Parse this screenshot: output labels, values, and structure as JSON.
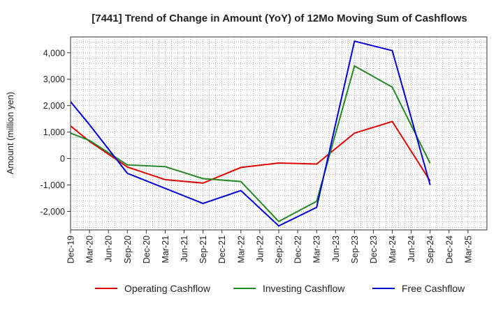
{
  "chart_data": {
    "type": "line",
    "title": "[7441]  Trend of Change in Amount (YoY) of 12Mo Moving Sum of Cashflows",
    "xlabel": "",
    "ylabel": "Amount (million yen)",
    "ylim": [
      -2700,
      4600
    ],
    "yticks": [
      -2000,
      -1000,
      0,
      1000,
      2000,
      3000,
      4000
    ],
    "ytick_labels": [
      "-2,000",
      "-1,000",
      "0",
      "1,000",
      "2,000",
      "3,000",
      "4,000"
    ],
    "grid": true,
    "legend_position": "bottom",
    "categories": [
      "Dec-19",
      "Mar-20",
      "Jun-20",
      "Sep-20",
      "Dec-20",
      "Mar-21",
      "Jun-21",
      "Sep-21",
      "Dec-21",
      "Mar-22",
      "Jun-22",
      "Sep-22",
      "Dec-22",
      "Mar-23",
      "Jun-23",
      "Sep-23",
      "Dec-23",
      "Mar-24",
      "Jun-24",
      "Sep-24",
      "Dec-24",
      "Mar-25"
    ],
    "series": [
      {
        "name": "Operating Cashflow",
        "color": "#e00000",
        "points": [
          [
            0,
            1230
          ],
          [
            1,
            650
          ],
          [
            3,
            -320
          ],
          [
            5,
            -800
          ],
          [
            7,
            -930
          ],
          [
            9,
            -340
          ],
          [
            11,
            -170
          ],
          [
            13,
            -210
          ],
          [
            15,
            960
          ],
          [
            17,
            1400
          ],
          [
            19,
            -850
          ]
        ]
      },
      {
        "name": "Investing Cashflow",
        "color": "#228822",
        "points": [
          [
            0,
            960
          ],
          [
            1,
            680
          ],
          [
            3,
            -240
          ],
          [
            5,
            -310
          ],
          [
            7,
            -760
          ],
          [
            9,
            -870
          ],
          [
            11,
            -2380
          ],
          [
            13,
            -1620
          ],
          [
            15,
            3500
          ],
          [
            17,
            2700
          ],
          [
            19,
            -180
          ]
        ]
      },
      {
        "name": "Free Cashflow",
        "color": "#0000dd",
        "points": [
          [
            0,
            2150
          ],
          [
            1,
            1280
          ],
          [
            3,
            -560
          ],
          [
            5,
            -1130
          ],
          [
            7,
            -1700
          ],
          [
            9,
            -1210
          ],
          [
            11,
            -2550
          ],
          [
            13,
            -1850
          ],
          [
            15,
            4440
          ],
          [
            17,
            4080
          ],
          [
            19,
            -1000
          ]
        ]
      }
    ]
  }
}
